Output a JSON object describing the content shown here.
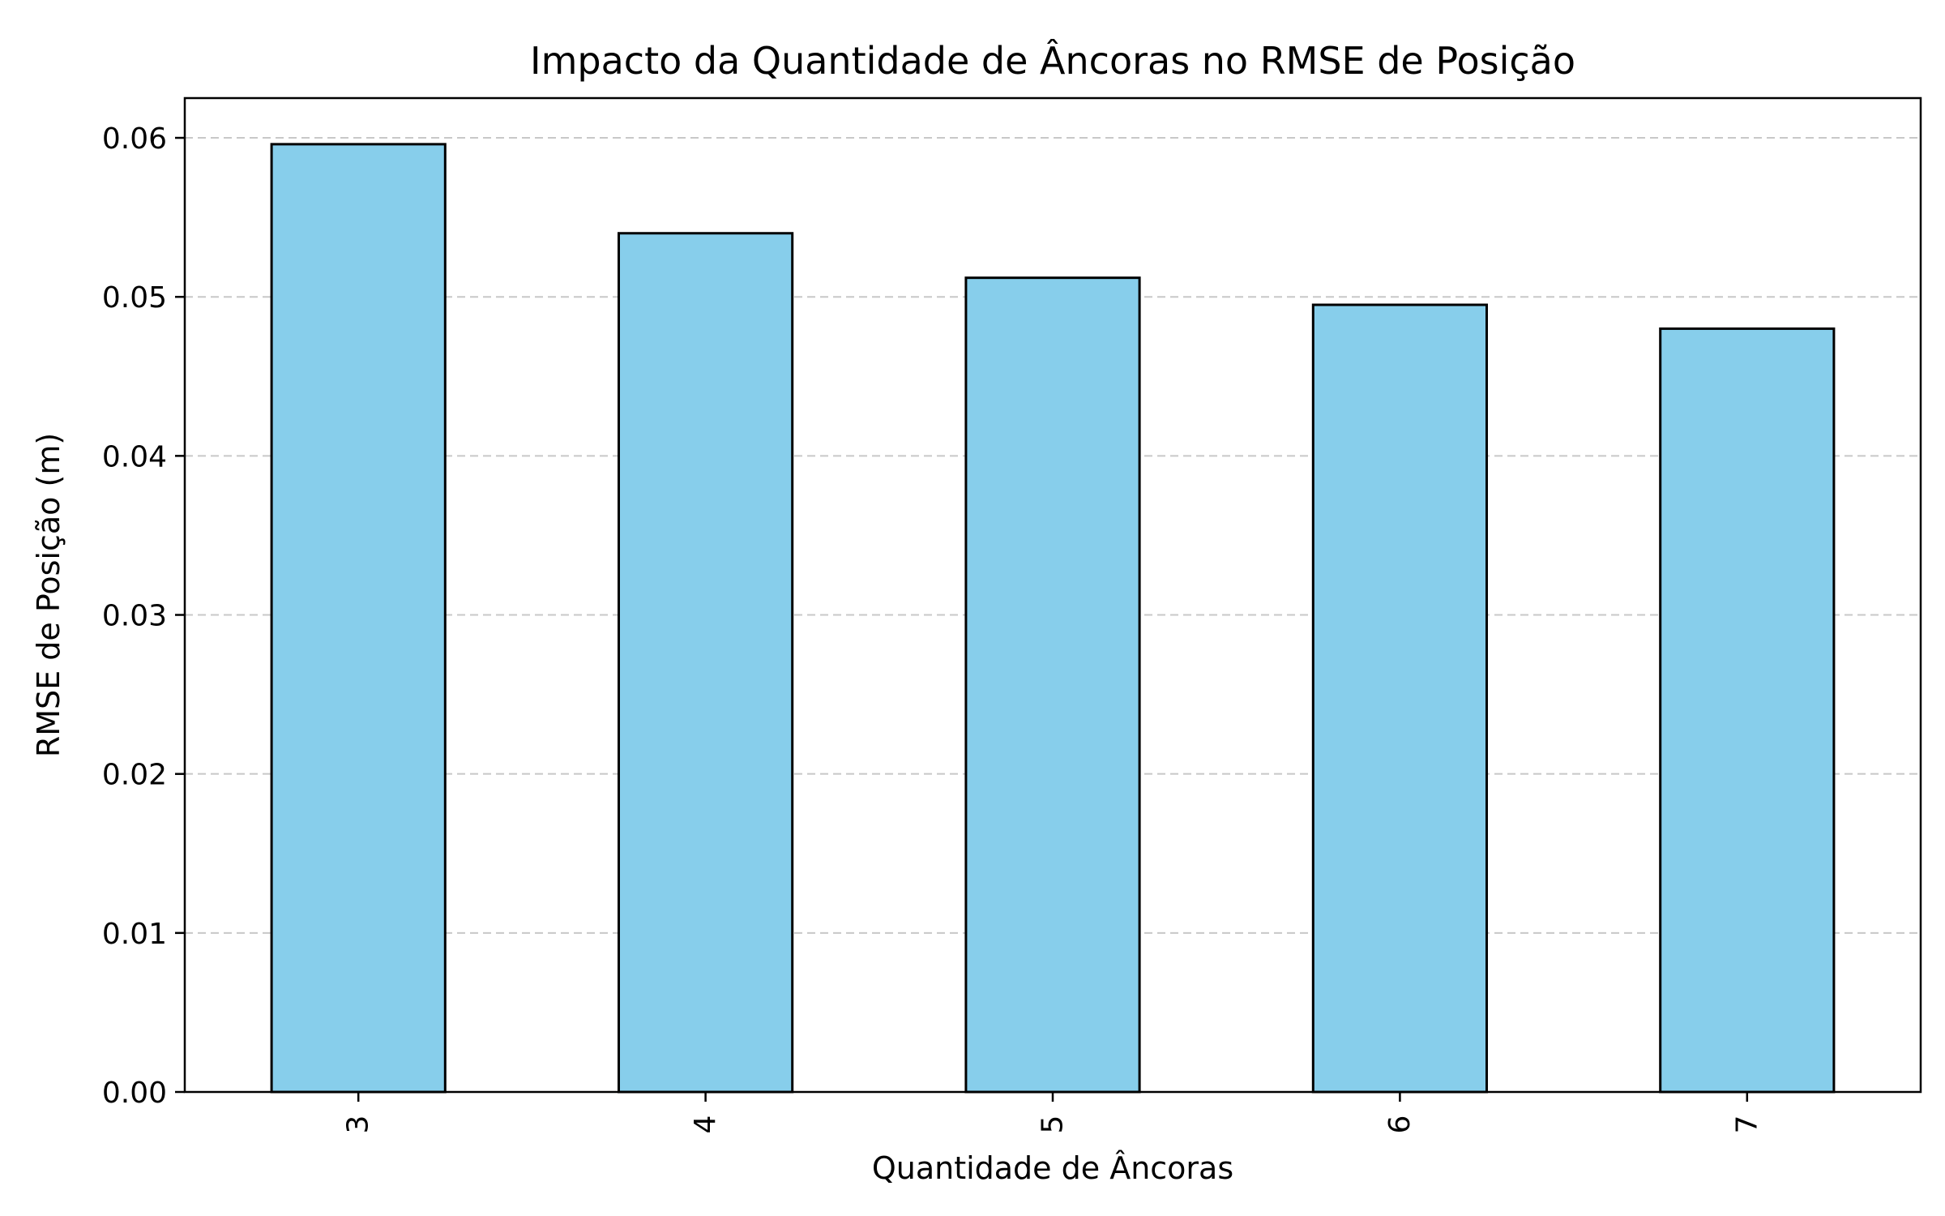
{
  "chart_data": {
    "type": "bar",
    "title": "Impacto da Quantidade de Âncoras no RMSE de Posição",
    "xlabel": "Quantidade de Âncoras",
    "ylabel": "RMSE de Posição (m)",
    "categories": [
      "3",
      "4",
      "5",
      "6",
      "7"
    ],
    "values": [
      0.0596,
      0.054,
      0.0512,
      0.0495,
      0.048
    ],
    "ylim": [
      0,
      0.0625
    ],
    "yticks": [
      0.0,
      0.01,
      0.02,
      0.03,
      0.04,
      0.05,
      0.06
    ],
    "ytick_labels": [
      "0.00",
      "0.01",
      "0.02",
      "0.03",
      "0.04",
      "0.05",
      "0.06"
    ],
    "xtick_rotation": "vertical",
    "grid": "y-dashed",
    "legend": "none",
    "bar_color": "#87CEEB",
    "bar_edge_color": "#000000",
    "grid_color": "#c8c8c8"
  }
}
